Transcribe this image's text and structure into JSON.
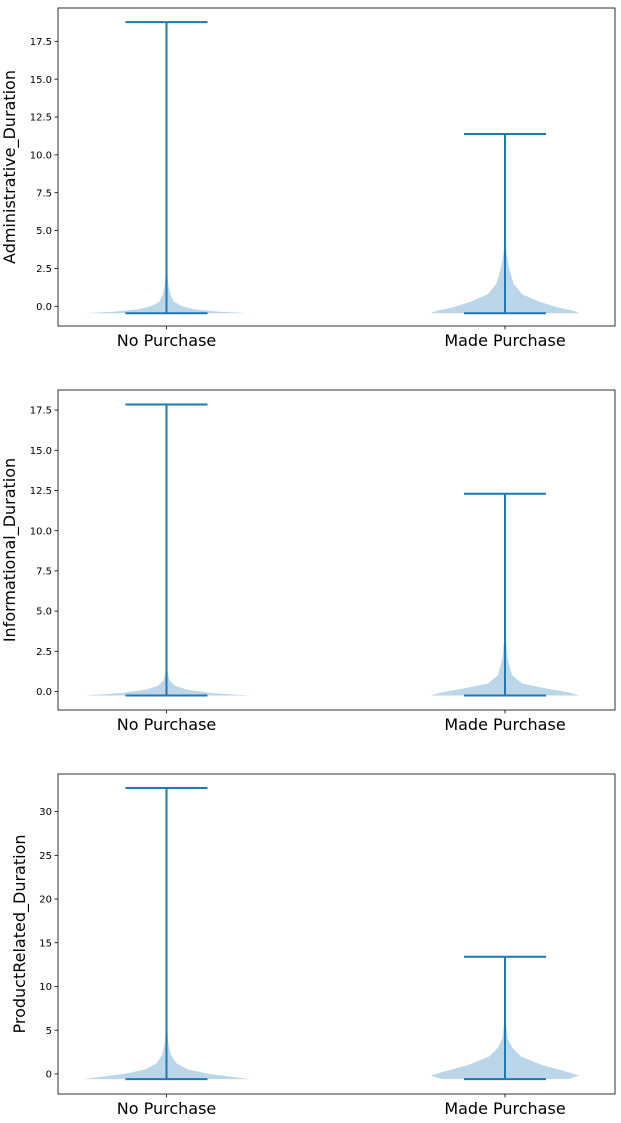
{
  "figure": {
    "background": "#ffffff"
  },
  "colors": {
    "body": "#1f77b4",
    "body_opacity": 0.3,
    "lines": "#1f77b4",
    "frame": "#000000"
  },
  "chart_data": [
    {
      "type": "violin",
      "ylabel": "Administrative_Duration",
      "categories": [
        "No Purchase",
        "Made Purchase"
      ],
      "ylim": [
        -1.3,
        19.7
      ],
      "yticks": [
        0.0,
        2.5,
        5.0,
        7.5,
        10.0,
        12.5,
        15.0,
        17.5
      ],
      "ytick_labels": [
        "0.0",
        "2.5",
        "5.0",
        "7.5",
        "10.0",
        "12.5",
        "15.0",
        "17.5"
      ],
      "violins": [
        {
          "category": "No Purchase",
          "min": -0.46,
          "max": 18.77,
          "shape": [
            [
              -0.46,
              0.58
            ],
            [
              -0.35,
              0.36
            ],
            [
              -0.2,
              0.2
            ],
            [
              0.0,
              0.11
            ],
            [
              0.3,
              0.05
            ],
            [
              0.8,
              0.025
            ],
            [
              1.5,
              0.012
            ],
            [
              2.5,
              0.004
            ],
            [
              4.0,
              0.0015
            ],
            [
              8.0,
              0.0005
            ],
            [
              18.77,
              0.0002
            ]
          ]
        },
        {
          "category": "Made Purchase",
          "min": -0.46,
          "max": 11.38,
          "shape": [
            [
              -0.46,
              0.52
            ],
            [
              -0.3,
              0.48
            ],
            [
              -0.05,
              0.36
            ],
            [
              0.3,
              0.24
            ],
            [
              0.8,
              0.12
            ],
            [
              1.5,
              0.06
            ],
            [
              2.5,
              0.03
            ],
            [
              3.5,
              0.01
            ],
            [
              5.0,
              0.004
            ],
            [
              8.0,
              0.0015
            ],
            [
              11.38,
              0.0005
            ]
          ]
        }
      ]
    },
    {
      "type": "violin",
      "ylabel": "Informational_Duration",
      "categories": [
        "No Purchase",
        "Made Purchase"
      ],
      "ylim": [
        -1.15,
        18.75
      ],
      "yticks": [
        0.0,
        2.5,
        5.0,
        7.5,
        10.0,
        12.5,
        15.0,
        17.5
      ],
      "ytick_labels": [
        "0.0",
        "2.5",
        "5.0",
        "7.5",
        "10.0",
        "12.5",
        "15.0",
        "17.5"
      ],
      "violins": [
        {
          "category": "No Purchase",
          "min": -0.25,
          "max": 17.85,
          "shape": [
            [
              -0.25,
              0.58
            ],
            [
              -0.1,
              0.32
            ],
            [
              0.1,
              0.15
            ],
            [
              0.35,
              0.06
            ],
            [
              0.7,
              0.02
            ],
            [
              1.2,
              0.008
            ],
            [
              2.0,
              0.003
            ],
            [
              5.0,
              0.001
            ],
            [
              17.85,
              0.0002
            ]
          ]
        },
        {
          "category": "Made Purchase",
          "min": -0.25,
          "max": 12.3,
          "shape": [
            [
              -0.25,
              0.52
            ],
            [
              -0.05,
              0.44
            ],
            [
              0.2,
              0.28
            ],
            [
              0.5,
              0.12
            ],
            [
              1.0,
              0.05
            ],
            [
              2.0,
              0.02
            ],
            [
              3.0,
              0.008
            ],
            [
              4.0,
              0.003
            ],
            [
              7.0,
              0.001
            ],
            [
              12.3,
              0.0004
            ]
          ]
        }
      ]
    },
    {
      "type": "violin",
      "ylabel": "ProductRelated_Duration",
      "categories": [
        "No Purchase",
        "Made Purchase"
      ],
      "ylim": [
        -2.3,
        34.3
      ],
      "yticks": [
        0,
        5,
        10,
        15,
        20,
        25,
        30
      ],
      "ytick_labels": [
        "0",
        "5",
        "10",
        "15",
        "20",
        "25",
        "30"
      ],
      "violins": [
        {
          "category": "No Purchase",
          "min": -0.6,
          "max": 32.7,
          "shape": [
            [
              -0.6,
              0.58
            ],
            [
              -0.3,
              0.44
            ],
            [
              0.0,
              0.3
            ],
            [
              0.5,
              0.15
            ],
            [
              1.2,
              0.07
            ],
            [
              2.2,
              0.03
            ],
            [
              3.5,
              0.012
            ],
            [
              6.0,
              0.004
            ],
            [
              12.0,
              0.0015
            ],
            [
              32.7,
              0.0003
            ]
          ]
        },
        {
          "category": "Made Purchase",
          "min": -0.6,
          "max": 13.4,
          "shape": [
            [
              -0.6,
              0.44
            ],
            [
              -0.2,
              0.52
            ],
            [
              0.3,
              0.42
            ],
            [
              1.0,
              0.26
            ],
            [
              2.0,
              0.11
            ],
            [
              3.0,
              0.05
            ],
            [
              4.0,
              0.02
            ],
            [
              5.5,
              0.008
            ],
            [
              8.0,
              0.003
            ],
            [
              13.4,
              0.0008
            ]
          ]
        }
      ]
    }
  ]
}
